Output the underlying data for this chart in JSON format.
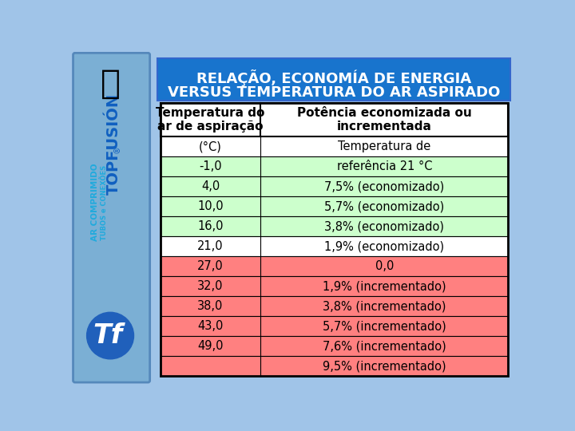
{
  "title_line1": "RELAÇÃO, ECONOMÍA DE ENERGIA",
  "title_line2": "VERSUS TEMPERATURA DO AR ASPIRADO",
  "title_bg": "#1874CD",
  "title_color": "#FFFFFF",
  "header_col1": "Temperatura do\nar de aspiração",
  "header_col2": "Potência economizada ou\nincrementada",
  "header_bg": "#FFFFFF",
  "header_color": "#000000",
  "rows": [
    {
      "col1": "(°C)",
      "col2_special": "top",
      "bg": "#FFFFFF"
    },
    {
      "col1": "-1,0",
      "col2_special": "bottom",
      "bg": "#CCFFCC"
    },
    {
      "col1": "4,0",
      "col2": "7,5% (economizado)",
      "bg": "#CCFFCC"
    },
    {
      "col1": "10,0",
      "col2": "5,7% (economizado)",
      "bg": "#CCFFCC"
    },
    {
      "col1": "16,0",
      "col2": "3,8% (economizado)",
      "bg": "#CCFFCC"
    },
    {
      "col1": "21,0",
      "col2": "1,9% (economizado)",
      "bg": "#FFFFFF"
    },
    {
      "col1": "27,0",
      "col2": "0,0",
      "bg": "#FF8080"
    },
    {
      "col1": "32,0",
      "col2": "1,9% (incrementado)",
      "bg": "#FF8080"
    },
    {
      "col1": "38,0",
      "col2": "3,8% (incrementado)",
      "bg": "#FF8080"
    },
    {
      "col1": "43,0",
      "col2": "5,7% (incrementado)",
      "bg": "#FF8080"
    },
    {
      "col1": "49,0",
      "col2": "7,6% (incrementado)",
      "bg": "#FF8080"
    },
    {
      "col1": "",
      "col2": "9,5% (incrementado)",
      "bg": "#FF8080"
    }
  ],
  "outer_bg": "#A0C4E8",
  "table_border": "#000000",
  "left_panel_bg": "#7BAFD4"
}
